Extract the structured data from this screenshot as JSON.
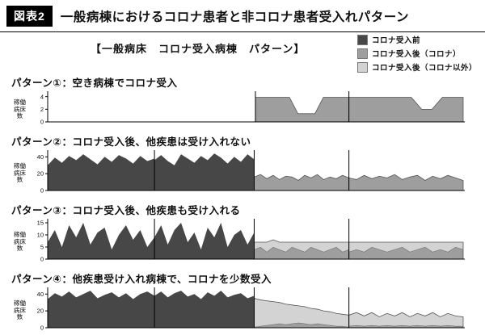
{
  "header": {
    "badge": "図表2",
    "title": "一般病棟におけるコロナ患者と非コロナ患者受入れパターン"
  },
  "subtitle": "【一般病床　コロナ受入病棟　パターン】",
  "legend": [
    {
      "label": "コロナ受入前",
      "color": "#474747"
    },
    {
      "label": "コロナ受入後（コロナ）",
      "color": "#9e9e9e"
    },
    {
      "label": "コロナ受入後（コロナ以外）",
      "color": "#d3d3d3"
    }
  ],
  "chart_data": [
    {
      "type": "area",
      "title": "パターン①：空き病棟でコロナ受入",
      "ylabel": "稼働病床数",
      "yticks": [
        0,
        2,
        4
      ],
      "ylim": [
        0,
        4.6
      ],
      "separators": [
        0.5,
        0.725
      ],
      "regions": [
        {
          "x_start": 0,
          "x_end": 0.5,
          "series": [
            {
              "name": "コロナ受入前",
              "values": [
                0,
                0,
                0,
                0,
                0,
                0,
                0,
                0
              ]
            }
          ]
        },
        {
          "x_start": 0.5,
          "x_end": 0.725,
          "series": [
            {
              "name": "コロナ受入後（コロナ）",
              "values": [
                3.9,
                3.9,
                3.9,
                3.9,
                3.9,
                1.3,
                1.3,
                1.3,
                3.9,
                3.9,
                3.9,
                3.9
              ]
            }
          ]
        },
        {
          "x_start": 0.725,
          "x_end": 1,
          "series": [
            {
              "name": "コロナ受入後（コロナ）",
              "values": [
                3.9,
                3.9,
                3.9,
                3.9,
                3.9,
                3.9,
                3.9,
                2,
                2,
                3.9,
                3.9,
                3.9
              ]
            }
          ]
        }
      ]
    },
    {
      "type": "area",
      "title": "パターン②：コロナ受入後、他疾患は受け入れない",
      "ylabel": "稼働病床数",
      "yticks": [
        0,
        20,
        40
      ],
      "ylim": [
        0,
        46
      ],
      "separators": [
        0.257,
        0.497,
        0.725
      ],
      "regions": [
        {
          "x_start": 0,
          "x_end": 0.257,
          "series": [
            {
              "name": "コロナ受入前",
              "values": [
                30,
                39,
                33,
                41,
                36,
                43,
                37,
                31,
                40,
                34,
                42,
                38,
                32,
                41,
                35,
                38
              ]
            }
          ]
        },
        {
          "x_start": 0.257,
          "x_end": 0.497,
          "series": [
            {
              "name": "コロナ受入前",
              "values": [
                36,
                42,
                35,
                30,
                43,
                38,
                33,
                41,
                36,
                44,
                39,
                32,
                40,
                34,
                43,
                37
              ]
            }
          ]
        },
        {
          "x_start": 0.497,
          "x_end": 0.725,
          "series": [
            {
              "name": "コロナ受入後（コロナ）",
              "values": [
                16,
                19,
                14,
                18,
                13,
                17,
                16,
                12,
                18,
                15,
                19,
                13,
                16,
                14,
                18,
                15
              ]
            }
          ]
        },
        {
          "x_start": 0.725,
          "x_end": 1,
          "series": [
            {
              "name": "コロナ受入後（コロナ）",
              "values": [
                15,
                13,
                18,
                14,
                17,
                15,
                19,
                13,
                16,
                18,
                12,
                17,
                14,
                18,
                15,
                12
              ]
            }
          ]
        }
      ]
    },
    {
      "type": "area",
      "title": "パターン③：コロナ受入後、他疾患も受け入れる",
      "ylabel": "稼働病床数",
      "yticks": [
        0,
        5,
        10,
        15
      ],
      "ylim": [
        0,
        16
      ],
      "separators": [
        0.257,
        0.497,
        0.725
      ],
      "regions": [
        {
          "x_start": 0,
          "x_end": 0.257,
          "series": [
            {
              "name": "コロナ受入前",
              "values": [
                7,
                12,
                5,
                14,
                9,
                15,
                6,
                11,
                13,
                4,
                10,
                14,
                8,
                12,
                5,
                9
              ]
            }
          ]
        },
        {
          "x_start": 0.257,
          "x_end": 0.497,
          "series": [
            {
              "name": "コロナ受入前",
              "values": [
                9,
                14,
                6,
                12,
                15,
                7,
                11,
                4,
                13,
                9,
                15,
                5,
                10,
                12,
                6,
                11
              ]
            }
          ]
        },
        {
          "x_start": 0.497,
          "x_end": 0.725,
          "series": [
            {
              "name": "コロナ受入後（コロナ）",
              "values": [
                4,
                5,
                3,
                5,
                4,
                3,
                5,
                4,
                3,
                5,
                4,
                3,
                4,
                5,
                3,
                4
              ]
            },
            {
              "name": "コロナ受入後（コロナ以外）",
              "values": [
                3,
                2,
                4,
                3,
                3,
                4,
                2,
                3,
                4,
                2,
                3,
                4,
                3,
                2,
                4,
                3
              ]
            }
          ]
        },
        {
          "x_start": 0.725,
          "x_end": 1,
          "series": [
            {
              "name": "コロナ受入後（コロナ）",
              "values": [
                3,
                4,
                3,
                5,
                4,
                3,
                4,
                5,
                3,
                4,
                5,
                3,
                4,
                3,
                5,
                4
              ]
            },
            {
              "name": "コロナ受入後（コロナ以外）",
              "values": [
                4,
                3,
                4,
                2,
                3,
                4,
                3,
                2,
                4,
                3,
                2,
                4,
                3,
                4,
                2,
                3
              ]
            }
          ]
        }
      ]
    },
    {
      "type": "area",
      "title": "パターン④：他疾患受け入れ病棟で、コロナを少数受入",
      "ylabel": "稼働病床数",
      "yticks": [
        0,
        20,
        40
      ],
      "ylim": [
        0,
        46
      ],
      "separators": [
        0.257,
        0.497,
        0.725
      ],
      "regions": [
        {
          "x_start": 0,
          "x_end": 0.257,
          "series": [
            {
              "name": "コロナ受入前",
              "values": [
                34,
                41,
                37,
                43,
                36,
                40,
                44,
                35,
                39,
                42,
                36,
                41,
                34,
                40,
                43,
                38
              ]
            }
          ]
        },
        {
          "x_start": 0.257,
          "x_end": 0.497,
          "series": [
            {
              "name": "コロナ受入前",
              "values": [
                38,
                43,
                36,
                41,
                44,
                37,
                40,
                34,
                42,
                38,
                44,
                36,
                39,
                41,
                35,
                38
              ]
            }
          ]
        },
        {
          "x_start": 0.497,
          "x_end": 0.725,
          "series": [
            {
              "name": "コロナ受入後（コロナ）",
              "values": [
                1,
                2,
                3,
                4,
                5,
                4,
                5,
                6,
                5,
                4,
                5,
                4,
                3,
                2,
                2,
                1
              ]
            },
            {
              "name": "コロナ受入後（コロナ以外）",
              "values": [
                34,
                31,
                29,
                27,
                25,
                24,
                22,
                20,
                20,
                19,
                17,
                16,
                16,
                15,
                14,
                14
              ]
            }
          ]
        },
        {
          "x_start": 0.725,
          "x_end": 1,
          "series": [
            {
              "name": "コロナ受入後（コロナ）",
              "values": [
                2,
                3,
                2,
                3,
                2,
                3,
                2,
                3,
                2,
                3,
                2,
                3,
                2,
                3,
                2,
                2
              ]
            },
            {
              "name": "コロナ受入後（コロナ以外）",
              "values": [
                13,
                15,
                12,
                15,
                11,
                14,
                12,
                15,
                11,
                14,
                12,
                15,
                11,
                14,
                12,
                11
              ]
            }
          ]
        }
      ]
    }
  ]
}
